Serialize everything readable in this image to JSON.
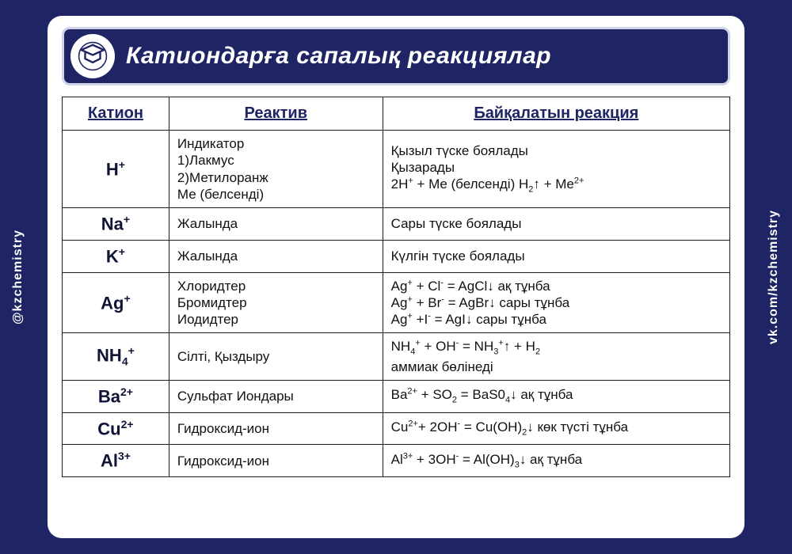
{
  "title": "Катиондарға сапалық реакциялар",
  "side_left": "@kzchemistry",
  "side_right": "vk.com/kzchemistry",
  "headers": {
    "c1": "Катион",
    "c2": "Реактив",
    "c3": "Байқалатын реакция"
  },
  "rows": [
    {
      "cation_html": "H<span class='sup'>+</span>",
      "reagent": "Индикатор\n1)Лакмус\n2)Метилоранж\nМе (белсенді)",
      "reaction_html": "Қызыл түске боялады<br>Қызарады<br>2H<span class='sup'>+</span> + Me (белсенді) H<span class='sub'>2</span>↑ + Me<span class='sup'>2+</span>"
    },
    {
      "cation_html": "Na<span class='sup'>+</span>",
      "reagent": "Жалында",
      "reaction_html": "Сары түске боялады"
    },
    {
      "cation_html": "K<span class='sup'>+</span>",
      "reagent": "Жалында",
      "reaction_html": "Күлгін түске боялады"
    },
    {
      "cation_html": "Ag<span class='sup'>+</span>",
      "reagent": "Хлоридтер\nБромидтер\nИодидтер",
      "reaction_html": "Ag<span class='sup'>+</span> + Cl<span class='sup'>-</span> = AgCl↓ ақ тұнба<br>Ag<span class='sup'>+</span> + Br<span class='sup'>-</span> = AgBr↓ сары тұнба<br>Ag<span class='sup'>+</span> +I<span class='sup'>-</span> = AgI↓ сары тұнба"
    },
    {
      "cation_html": "NH<span class='sub'>4</span><span class='sup'>+</span>",
      "reagent": "Сілті, Қыздыру",
      "reaction_html": "NH<span class='sub'>4</span><span class='sup'>+</span> + OH<span class='sup'>-</span> = NH<span class='sub'>3</span><span class='sup'>+</span>↑ + H<span class='sub'>2</span><br>аммиак бөлінеді"
    },
    {
      "cation_html": "Ba<span class='sup'>2+</span>",
      "reagent": "Сульфат Иондары",
      "reaction_html": "Ba<span class='sup'>2+</span> + SO<span class='sub'>2</span> = BaS0<span class='sub'>4</span>↓ ақ тұнба"
    },
    {
      "cation_html": "Cu<span class='sup'>2+</span>",
      "reagent": "Гидроксид-ион",
      "reaction_html": "Cu<span class='sup'>2+</span>+ 2OH<span class='sup'>-</span> = Cu(OH)<span class='sub'>2</span>↓ көк түсті тұнба"
    },
    {
      "cation_html": "Al<span class='sup'>3+</span>",
      "reagent": "Гидроксид-ион",
      "reaction_html": "Al<span class='sup'>3+</span> + 3OH<span class='sup'>-</span> = Al(OH)<span class='sub'>3</span>↓ ақ тұнба"
    }
  ],
  "colors": {
    "page_bg": "#1e2464",
    "card_bg": "#ffffff",
    "header_border": "#d0d3e6",
    "text": "#111111",
    "header_text": "#1e2464"
  }
}
